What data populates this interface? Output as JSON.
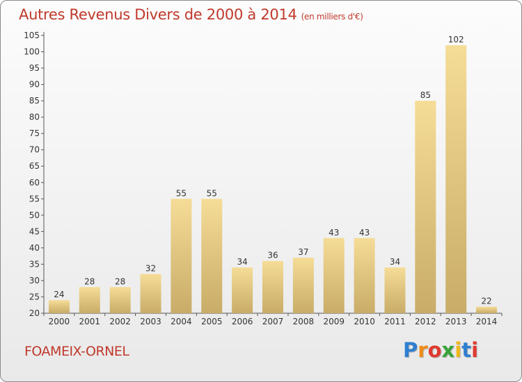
{
  "chart_data": {
    "type": "bar",
    "title": "Autres Revenus Divers de 2000 à 2014",
    "subtitle": "(en milliers d'€)",
    "categories": [
      "2000",
      "2001",
      "2002",
      "2003",
      "2004",
      "2005",
      "2006",
      "2007",
      "2008",
      "2009",
      "2010",
      "2011",
      "2012",
      "2013",
      "2014"
    ],
    "values": [
      24,
      28,
      28,
      32,
      55,
      55,
      34,
      36,
      37,
      43,
      43,
      34,
      85,
      102,
      22
    ],
    "ylim": [
      20,
      105
    ],
    "yticks": [
      20,
      25,
      30,
      35,
      40,
      45,
      50,
      55,
      60,
      65,
      70,
      75,
      80,
      85,
      90,
      95,
      100,
      105
    ],
    "grid": false,
    "legend": "none",
    "bar_color": "#e9cf8a"
  },
  "footer": {
    "place": "FOAMEIX-ORNEL",
    "logo_letters": [
      {
        "ch": "P",
        "color": "#2f7fd0"
      },
      {
        "ch": "r",
        "color": "#f08c1a"
      },
      {
        "ch": "o",
        "color": "#e03a2f"
      },
      {
        "ch": "x",
        "color": "#3aa23a"
      },
      {
        "ch": "i",
        "color": "#f0b81a"
      },
      {
        "ch": "t",
        "color": "#2f7fd0"
      },
      {
        "ch": "i",
        "color": "#e03a2f"
      }
    ]
  }
}
